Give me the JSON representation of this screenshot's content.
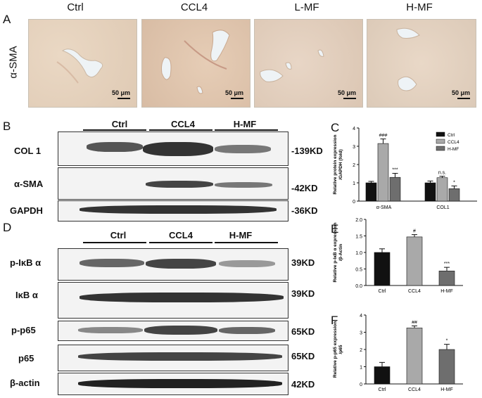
{
  "panelA": {
    "letter": "A",
    "row_label": "α-SMA",
    "titles": [
      "Ctrl",
      "CCL4",
      "L-MF",
      "H-MF"
    ],
    "scale": "50 μm"
  },
  "panelB": {
    "letter": "B",
    "groups": [
      "Ctrl",
      "CCL4",
      "H-MF"
    ],
    "rows": [
      {
        "label": "COL 1",
        "kd": "-139KD"
      },
      {
        "label": "α-SMA",
        "kd": "-42KD"
      },
      {
        "label": "GAPDH",
        "kd": "-36KD"
      }
    ]
  },
  "panelD": {
    "letter": "D",
    "groups": [
      "Ctrl",
      "CCL4",
      "H-MF"
    ],
    "rows": [
      {
        "label": "p-IκB α",
        "kd": "39KD"
      },
      {
        "label": "IκB α",
        "kd": "39KD"
      },
      {
        "label": "p-p65",
        "kd": "65KD"
      },
      {
        "label": "p65",
        "kd": "65KD"
      },
      {
        "label": "β-actin",
        "kd": "42KD"
      }
    ]
  },
  "chart_data": [
    {
      "type": "bar",
      "panel": "C",
      "ylabel": "Relative protein expression /GAPDH (fold)",
      "categories": [
        "α-SMA",
        "COL1"
      ],
      "series": [
        {
          "name": "Ctrl",
          "values": [
            1.0,
            1.0
          ],
          "color": "#111111"
        },
        {
          "name": "CCL4",
          "values": [
            3.15,
            1.28
          ],
          "color": "#a9a9a9"
        },
        {
          "name": "H-MF",
          "values": [
            1.3,
            0.68
          ],
          "color": "#6e6e6e"
        }
      ],
      "errors": [
        [
          0.08,
          0.1
        ],
        [
          0.25,
          0.08
        ],
        [
          0.22,
          0.15
        ]
      ],
      "annotations": [
        [
          "",
          ""
        ],
        [
          "###",
          "n.s."
        ],
        [
          "***",
          "*"
        ]
      ],
      "ylim": [
        0,
        4
      ],
      "yticks": [
        0,
        1,
        2,
        3,
        4
      ],
      "legend": "top-right"
    },
    {
      "type": "bar",
      "panel": "E",
      "ylabel": "Relative p-IκB α expression /β-Actin",
      "categories": [
        "Ctrl",
        "CCL4",
        "H-MF"
      ],
      "values": [
        1.0,
        1.47,
        0.44
      ],
      "errors": [
        0.11,
        0.07,
        0.11
      ],
      "colors": [
        "#111111",
        "#a9a9a9",
        "#6e6e6e"
      ],
      "annotations": [
        "",
        "#",
        "***"
      ],
      "ylim": [
        0,
        2.0
      ],
      "yticks": [
        0.0,
        0.5,
        1.0,
        1.5,
        2.0
      ]
    },
    {
      "type": "bar",
      "panel": "F",
      "ylabel": "Relative p-p65 expression /p65",
      "categories": [
        "Ctrl",
        "CCL4",
        "H-MF"
      ],
      "values": [
        1.0,
        3.25,
        2.0
      ],
      "errors": [
        0.25,
        0.12,
        0.3
      ],
      "colors": [
        "#111111",
        "#a9a9a9",
        "#6e6e6e"
      ],
      "annotations": [
        "",
        "##",
        "*"
      ],
      "ylim": [
        0,
        4
      ],
      "yticks": [
        0,
        1,
        2,
        3,
        4
      ]
    }
  ]
}
